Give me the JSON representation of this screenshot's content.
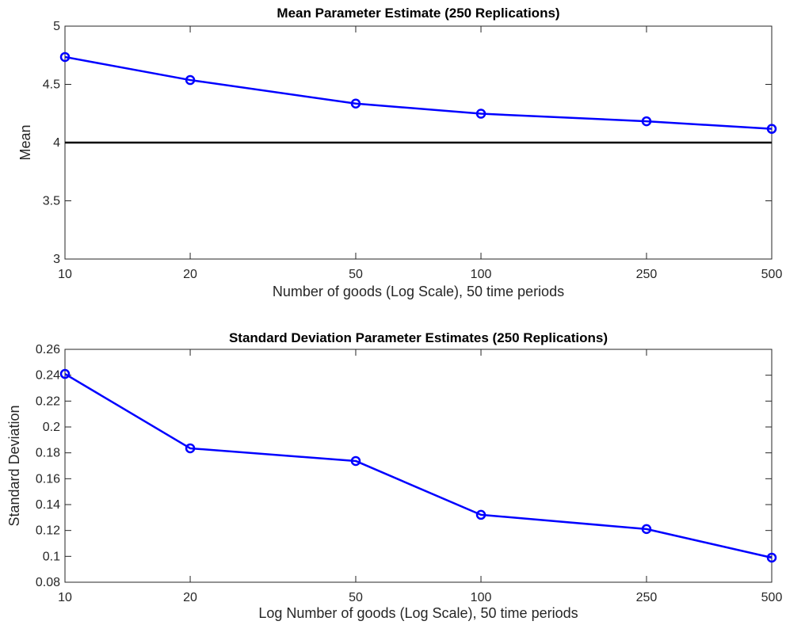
{
  "chart_data": [
    {
      "type": "line",
      "title": "Mean Parameter Estimate (250 Replications)",
      "xlabel": "Number of goods (Log Scale), 50 time periods",
      "ylabel": "Mean",
      "x_scale": "log",
      "xlim": [
        10,
        500
      ],
      "ylim": [
        3,
        5
      ],
      "xticks": [
        10,
        20,
        50,
        100,
        250,
        500
      ],
      "xtick_labels": [
        "10",
        "20",
        "50",
        "100",
        "250",
        "500"
      ],
      "yticks": [
        3,
        3.5,
        4,
        4.5,
        5
      ],
      "ytick_labels": [
        "3",
        "3.5",
        "4",
        "4.5",
        "5"
      ],
      "grid": false,
      "series": [
        {
          "x": [
            10,
            20,
            50,
            100,
            250,
            500
          ],
          "values": [
            4.735,
            4.537,
            4.335,
            4.248,
            4.183,
            4.118
          ],
          "color": "#0000ff",
          "marker": "circle"
        }
      ],
      "reference_line": {
        "y": 4,
        "color": "#000000"
      }
    },
    {
      "type": "line",
      "title": "Standard Deviation Parameter Estimates (250 Replications)",
      "xlabel": "Log Number of goods (Log Scale), 50 time periods",
      "ylabel": "Standard Deviation",
      "x_scale": "log",
      "xlim": [
        10,
        500
      ],
      "ylim": [
        0.08,
        0.26
      ],
      "xticks": [
        10,
        20,
        50,
        100,
        250,
        500
      ],
      "xtick_labels": [
        "10",
        "20",
        "50",
        "100",
        "250",
        "500"
      ],
      "yticks": [
        0.08,
        0.1,
        0.12,
        0.14,
        0.16,
        0.18,
        0.2,
        0.22,
        0.24,
        0.26
      ],
      "ytick_labels": [
        "0.08",
        "0.1",
        "0.12",
        "0.14",
        "0.16",
        "0.18",
        "0.2",
        "0.22",
        "0.24",
        "0.26"
      ],
      "grid": false,
      "series": [
        {
          "x": [
            10,
            20,
            50,
            100,
            250,
            500
          ],
          "values": [
            0.241,
            0.1835,
            0.1737,
            0.1321,
            0.1211,
            0.099
          ],
          "color": "#0000ff",
          "marker": "circle"
        }
      ]
    }
  ]
}
